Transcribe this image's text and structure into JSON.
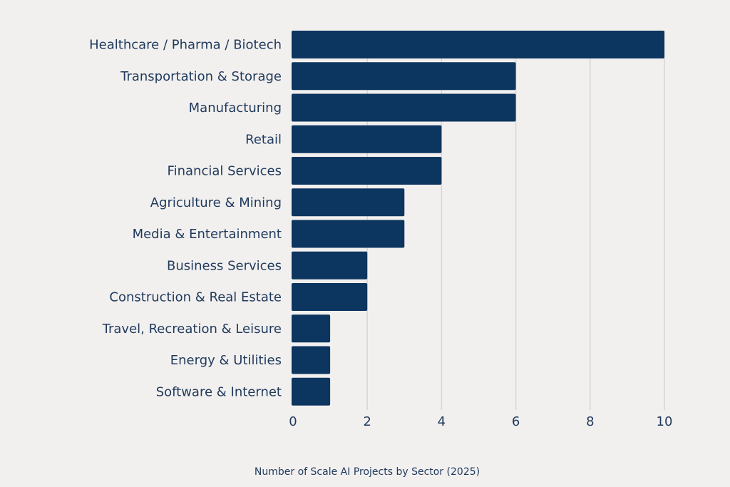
{
  "chart_data": {
    "type": "bar",
    "orientation": "horizontal",
    "title": "Number of Scale AI Projects by Sector (2025)",
    "xlabel": "",
    "ylabel": "",
    "categories": [
      "Healthcare / Pharma / Biotech",
      "Transportation & Storage",
      "Manufacturing",
      "Retail",
      "Financial Services",
      "Agriculture & Mining",
      "Media & Entertainment",
      "Business Services",
      "Construction & Real Estate",
      "Travel, Recreation & Leisure",
      "Energy & Utilities",
      "Software & Internet"
    ],
    "values": [
      10,
      6,
      6,
      4,
      4,
      3,
      3,
      2,
      2,
      1,
      1,
      1
    ],
    "xlim": [
      0,
      10
    ],
    "xticks": [
      "0",
      "2",
      "4",
      "6",
      "8",
      "10"
    ],
    "grid": "vertical",
    "bar_color": "#0c355f",
    "grid_color": "#d6d6d6",
    "background": "#f2f0ef"
  }
}
